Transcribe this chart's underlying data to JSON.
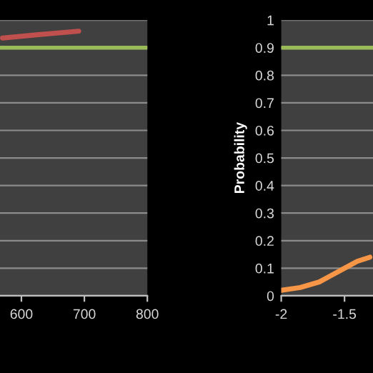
{
  "chart_data": [
    {
      "type": "line",
      "x": [
        570,
        630,
        691
      ],
      "series": [
        {
          "color": "#c0504d",
          "values": [
            0.935,
            0.948,
            0.96
          ]
        }
      ],
      "xlim": [
        566,
        800
      ],
      "xticks": [
        600,
        700,
        800
      ],
      "ylim": [
        0,
        1
      ],
      "yticks": [
        0,
        0.1,
        0.2,
        0.3,
        0.4,
        0.5,
        0.6,
        0.7,
        0.8,
        0.9,
        1
      ],
      "grid": "y",
      "tick_labels": "x",
      "ref_lines": [
        {
          "axis": "y",
          "value": 0.9,
          "color": "#9bbb59"
        }
      ]
    },
    {
      "type": "line",
      "x": [
        -2,
        -1.85,
        -1.7,
        -1.6,
        -1.5,
        -1.4,
        -1.3
      ],
      "ylabel": "Probability",
      "series": [
        {
          "color": "#f79646",
          "values": [
            0.02,
            0.03,
            0.05,
            0.075,
            0.1,
            0.125,
            0.14
          ]
        }
      ],
      "xlim": [
        -2,
        -1.275
      ],
      "xticks": [
        -2,
        -1.5
      ],
      "ylim": [
        0,
        1
      ],
      "yticks": [
        0,
        0.1,
        0.2,
        0.3,
        0.4,
        0.5,
        0.6,
        0.7,
        0.8,
        0.9,
        1
      ],
      "grid": "y",
      "ref_lines": [
        {
          "axis": "y",
          "value": 0.9,
          "color": "#9bbb59"
        }
      ]
    }
  ]
}
